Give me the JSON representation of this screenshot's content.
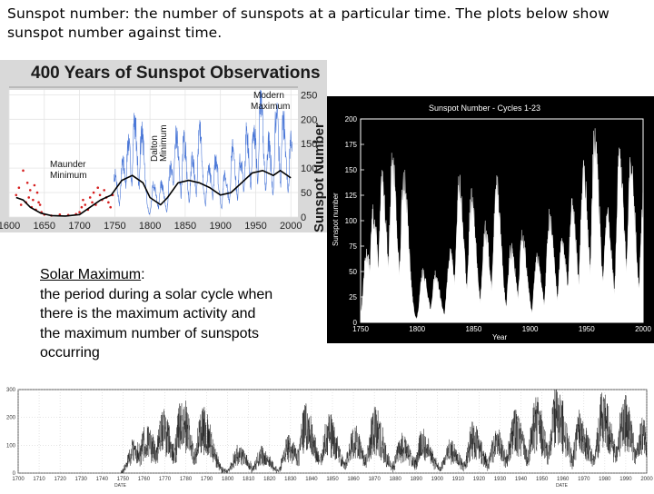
{
  "intro_text": "Sunspot number: the number of sunspots at a particular time. The plots below show sunspot number against time.",
  "definition": {
    "term": "Solar Maximum",
    "colon": ":",
    "body": "the period during a solar cycle when there is the maximum activity and the maximum number of sunspots occurring"
  },
  "colors": {
    "obs_telescope": "#2a5fd0",
    "obs_early": "#d62020",
    "smooth": "#000000",
    "panel_bg": "#d9d9d9"
  },
  "chart_data": [
    {
      "type": "line",
      "title": "400 Years of Sunspot Observations",
      "xlabel": "",
      "ylabel": "Sunspot Number",
      "xlim": [
        1600,
        2010
      ],
      "ylim": [
        0,
        260
      ],
      "x_ticks": [
        "1600",
        "1650",
        "1700",
        "1750",
        "1800",
        "1850",
        "1900",
        "1950",
        "2000"
      ],
      "y_ticks": [
        "0",
        "50",
        "100",
        "150",
        "200",
        "250"
      ],
      "annotations": {
        "maunder": [
          "Maunder",
          "Minimum"
        ],
        "dalton": [
          "Dalton",
          "Minimum"
        ],
        "modern": [
          "Modern",
          "Maximum"
        ]
      },
      "cycle_peaks": [
        [
          1750,
          90
        ],
        [
          1761,
          120
        ],
        [
          1769,
          160
        ],
        [
          1778,
          210
        ],
        [
          1788,
          185
        ],
        [
          1805,
          70
        ],
        [
          1816,
          70
        ],
        [
          1829,
          105
        ],
        [
          1837,
          185
        ],
        [
          1848,
          165
        ],
        [
          1860,
          130
        ],
        [
          1870,
          190
        ],
        [
          1883,
          110
        ],
        [
          1893,
          125
        ],
        [
          1906,
          95
        ],
        [
          1917,
          150
        ],
        [
          1928,
          125
        ],
        [
          1937,
          180
        ],
        [
          1947,
          200
        ],
        [
          1957,
          255
        ],
        [
          1968,
          165
        ],
        [
          1979,
          225
        ],
        [
          1989,
          210
        ],
        [
          2000,
          170
        ]
      ],
      "early_points": [
        [
          1610,
          45
        ],
        [
          1614,
          60
        ],
        [
          1617,
          25
        ],
        [
          1620,
          95
        ],
        [
          1624,
          30
        ],
        [
          1626,
          70
        ],
        [
          1628,
          40
        ],
        [
          1630,
          55
        ],
        [
          1632,
          20
        ],
        [
          1634,
          35
        ],
        [
          1636,
          65
        ],
        [
          1638,
          15
        ],
        [
          1640,
          50
        ],
        [
          1642,
          30
        ],
        [
          1644,
          25
        ],
        [
          1646,
          10
        ],
        [
          1650,
          5
        ],
        [
          1660,
          3
        ],
        [
          1672,
          5
        ],
        [
          1684,
          4
        ],
        [
          1695,
          6
        ],
        [
          1700,
          10
        ],
        [
          1703,
          20
        ],
        [
          1705,
          35
        ],
        [
          1708,
          25
        ],
        [
          1712,
          15
        ],
        [
          1715,
          40
        ],
        [
          1718,
          30
        ],
        [
          1720,
          50
        ],
        [
          1723,
          25
        ],
        [
          1726,
          60
        ],
        [
          1729,
          45
        ],
        [
          1732,
          35
        ],
        [
          1735,
          55
        ],
        [
          1738,
          40
        ],
        [
          1741,
          30
        ],
        [
          1744,
          20
        ],
        [
          1747,
          45
        ]
      ],
      "smooth_trend": [
        [
          1610,
          40
        ],
        [
          1620,
          35
        ],
        [
          1630,
          20
        ],
        [
          1645,
          8
        ],
        [
          1660,
          3
        ],
        [
          1680,
          2
        ],
        [
          1700,
          5
        ],
        [
          1715,
          20
        ],
        [
          1730,
          35
        ],
        [
          1745,
          45
        ],
        [
          1760,
          75
        ],
        [
          1775,
          85
        ],
        [
          1790,
          70
        ],
        [
          1800,
          40
        ],
        [
          1815,
          25
        ],
        [
          1825,
          40
        ],
        [
          1840,
          70
        ],
        [
          1855,
          75
        ],
        [
          1870,
          70
        ],
        [
          1885,
          60
        ],
        [
          1900,
          45
        ],
        [
          1915,
          50
        ],
        [
          1930,
          70
        ],
        [
          1945,
          90
        ],
        [
          1960,
          95
        ],
        [
          1975,
          85
        ],
        [
          1985,
          95
        ],
        [
          2000,
          80
        ]
      ]
    },
    {
      "type": "area",
      "title": "Sunspot Number - Cycles 1-23",
      "xlabel": "Year",
      "ylabel": "Sunspot number",
      "xlim": [
        1750,
        2000
      ],
      "ylim": [
        0,
        200
      ],
      "x_ticks": [
        "1750",
        "1800",
        "1850",
        "1900",
        "1950",
        "2000"
      ],
      "y_ticks": [
        "0",
        "25",
        "50",
        "75",
        "100",
        "125",
        "150",
        "175",
        "200"
      ],
      "cycle_peaks": [
        [
          1755,
          70
        ],
        [
          1761,
          110
        ],
        [
          1769,
          140
        ],
        [
          1778,
          160
        ],
        [
          1788,
          150
        ],
        [
          1805,
          50
        ],
        [
          1816,
          48
        ],
        [
          1829,
          70
        ],
        [
          1837,
          140
        ],
        [
          1848,
          125
        ],
        [
          1860,
          95
        ],
        [
          1870,
          140
        ],
        [
          1883,
          75
        ],
        [
          1893,
          88
        ],
        [
          1906,
          65
        ],
        [
          1917,
          105
        ],
        [
          1928,
          80
        ],
        [
          1937,
          115
        ],
        [
          1947,
          155
        ],
        [
          1957,
          190
        ],
        [
          1968,
          110
        ],
        [
          1979,
          165
        ],
        [
          1989,
          160
        ],
        [
          2000,
          120
        ]
      ]
    },
    {
      "type": "line",
      "title": "",
      "xlabel": "DATE",
      "ylabel": "",
      "xlim": [
        1700,
        2000
      ],
      "ylim": [
        0,
        300
      ],
      "x_ticks": [
        "1700",
        "1710",
        "1720",
        "1730",
        "1740",
        "1750",
        "1760",
        "1770",
        "1780",
        "1790",
        "1800",
        "1810",
        "1820",
        "1830",
        "1840",
        "1850",
        "1860",
        "1870",
        "1880",
        "1890",
        "1900",
        "1910",
        "1920",
        "1930",
        "1940",
        "1950",
        "1960",
        "1970",
        "1980",
        "1990",
        "2000"
      ],
      "y_ticks": [
        "0",
        "100",
        "200",
        "300"
      ],
      "data_start": 1749,
      "cycle_peaks": [
        [
          1755,
          100
        ],
        [
          1761,
          150
        ],
        [
          1769,
          190
        ],
        [
          1778,
          230
        ],
        [
          1788,
          210
        ],
        [
          1805,
          80
        ],
        [
          1816,
          75
        ],
        [
          1829,
          110
        ],
        [
          1837,
          200
        ],
        [
          1848,
          180
        ],
        [
          1860,
          140
        ],
        [
          1870,
          200
        ],
        [
          1883,
          120
        ],
        [
          1893,
          130
        ],
        [
          1906,
          100
        ],
        [
          1917,
          155
        ],
        [
          1928,
          130
        ],
        [
          1937,
          190
        ],
        [
          1947,
          220
        ],
        [
          1957,
          280
        ],
        [
          1968,
          180
        ],
        [
          1979,
          240
        ],
        [
          1989,
          230
        ],
        [
          1998,
          160
        ]
      ]
    }
  ]
}
